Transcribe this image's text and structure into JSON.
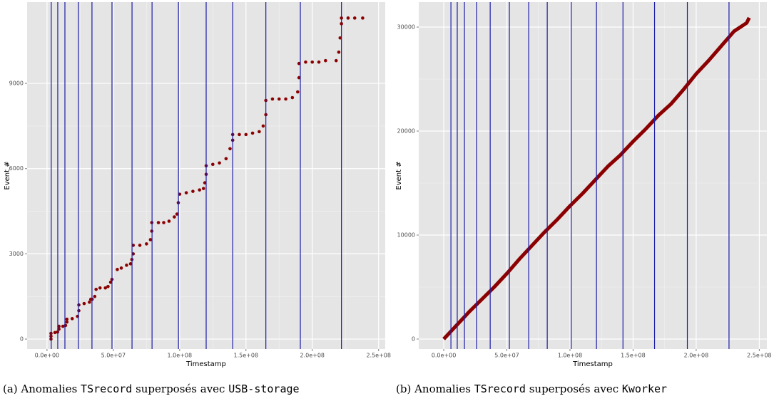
{
  "chart_data": [
    {
      "type": "scatter",
      "xlabel": "Timestamp",
      "ylabel": "Event #",
      "caption": [
        "(a) Anomalies ",
        "TSrecord",
        " superposés avec ",
        "USB-storage"
      ],
      "xlim": [
        -15000000.0,
        255000000.0
      ],
      "ylim": [
        -350,
        11860
      ],
      "xticks": [
        {
          "value": 0,
          "label": "0.0e+00"
        },
        {
          "value": 50000000.0,
          "label": "5.0e+07"
        },
        {
          "value": 100000000.0,
          "label": "1.0e+08"
        },
        {
          "value": 150000000.0,
          "label": "1.5e+08"
        },
        {
          "value": 200000000.0,
          "label": "2.0e+08"
        },
        {
          "value": 250000000.0,
          "label": "2.5e+08"
        }
      ],
      "yticks": [
        0,
        3000,
        6000,
        9000
      ],
      "grid": true,
      "connect": false,
      "vlines": [
        3200000.0,
        8100000.0,
        13500000.0,
        23700000.0,
        33900000.0,
        49000000.0,
        64100000.0,
        79200000.0,
        99100000.0,
        120000000.0,
        140000000.0,
        165000000.0,
        191000000.0,
        222000000.0
      ],
      "vline_color": "#1c1ca8",
      "series": [
        {
          "color": "#8b0000",
          "x": [
            3000000.0,
            3000000.0,
            3000000.0,
            6000000.0,
            8000000.0,
            9000000.0,
            9000000.0,
            12000000.0,
            14000000.0,
            15000000.0,
            15000000.0,
            19000000.0,
            23000000.0,
            24000000.0,
            24000000.0,
            28000000.0,
            32000000.0,
            33000000.0,
            34000000.0,
            36000000.0,
            37000000.0,
            40000000.0,
            44000000.0,
            46000000.0,
            48000000.0,
            49000000.0,
            53000000.0,
            56000000.0,
            60000000.0,
            63000000.0,
            64000000.0,
            65000000.0,
            65000000.0,
            70000000.0,
            75000000.0,
            78000000.0,
            79000000.0,
            79000000.0,
            84000000.0,
            88000000.0,
            92000000.0,
            96000000.0,
            98000000.0,
            99000000.0,
            100000000.0,
            105000000.0,
            110000000.0,
            115000000.0,
            118000000.0,
            119000000.0,
            120000000.0,
            120000000.0,
            125000000.0,
            130000000.0,
            135000000.0,
            138000000.0,
            140000000.0,
            140000000.0,
            145000000.0,
            150000000.0,
            155000000.0,
            160000000.0,
            163000000.0,
            165000000.0,
            165000000.0,
            170000000.0,
            175000000.0,
            180000000.0,
            185000000.0,
            189000000.0,
            190000000.0,
            190000000.0,
            195000000.0,
            200000000.0,
            205000000.0,
            210000000.0,
            218000000.0,
            220000000.0,
            221000000.0,
            222000000.0,
            222000000.0,
            227000000.0,
            232000000.0,
            238000000.0
          ],
          "values": [
            0,
            100,
            200,
            230,
            250,
            350,
            450,
            450,
            480,
            600,
            700,
            720,
            800,
            1000,
            1200,
            1250,
            1300,
            1400,
            1400,
            1500,
            1750,
            1800,
            1800,
            1850,
            2000,
            2100,
            2450,
            2500,
            2600,
            2650,
            2800,
            3000,
            3300,
            3300,
            3350,
            3500,
            3800,
            4100,
            4100,
            4100,
            4150,
            4300,
            4400,
            4800,
            5100,
            5150,
            5200,
            5250,
            5300,
            5500,
            5800,
            6100,
            6150,
            6200,
            6350,
            6700,
            7000,
            7200,
            7200,
            7200,
            7250,
            7300,
            7500,
            7900,
            8400,
            8450,
            8450,
            8450,
            8500,
            8700,
            9200,
            9700,
            9750,
            9750,
            9750,
            9800,
            9800,
            10100,
            10600,
            11100,
            11300,
            11300,
            11300,
            11300
          ]
        }
      ]
    },
    {
      "type": "scatter",
      "xlabel": "Timestamp",
      "ylabel": "Event #",
      "caption": [
        "(b) Anomalies ",
        "TSrecord",
        " superposés avec ",
        "Kworker"
      ],
      "xlim": [
        -19800000.0,
        256000000.0
      ],
      "ylim": [
        -960,
        32400
      ],
      "xticks": [
        {
          "value": 0,
          "label": "0.0e+00"
        },
        {
          "value": 50000000.0,
          "label": "5.0e+07"
        },
        {
          "value": 100000000.0,
          "label": "1.0e+08"
        },
        {
          "value": 150000000.0,
          "label": "1.5e+08"
        },
        {
          "value": 200000000.0,
          "label": "2.0e+08"
        },
        {
          "value": 250000000.0,
          "label": "2.5e+08"
        }
      ],
      "yticks": [
        0,
        10000,
        20000,
        30000
      ],
      "grid": true,
      "connect": true,
      "vlines": [
        5700000.0,
        10700000.0,
        16400000.0,
        26000000.0,
        36800000.0,
        52000000.0,
        67300000.0,
        82000000.0,
        101000000.0,
        121000000.0,
        142000000.0,
        167000000.0,
        193000000.0,
        226000000.0
      ],
      "vline_color": "#1c1ca8",
      "series": [
        {
          "color": "#8b0000",
          "x": [
            0,
            10000000.0,
            20000000.0,
            30000000.0,
            40000000.0,
            50000000.0,
            60000000.0,
            70000000.0,
            80000000.0,
            90000000.0,
            100000000.0,
            110000000.0,
            120000000.0,
            130000000.0,
            140000000.0,
            150000000.0,
            160000000.0,
            170000000.0,
            180000000.0,
            190000000.0,
            200000000.0,
            210000000.0,
            220000000.0,
            230000000.0,
            240000000.0,
            242000000.0
          ],
          "values": [
            0,
            1300,
            2600,
            3800,
            5000,
            6300,
            7700,
            9000,
            10300,
            11500,
            12800,
            14000,
            15300,
            16600,
            17700,
            19000,
            20200,
            21500,
            22600,
            24000,
            25500,
            26800,
            28200,
            29600,
            30400,
            30900
          ]
        }
      ]
    }
  ]
}
